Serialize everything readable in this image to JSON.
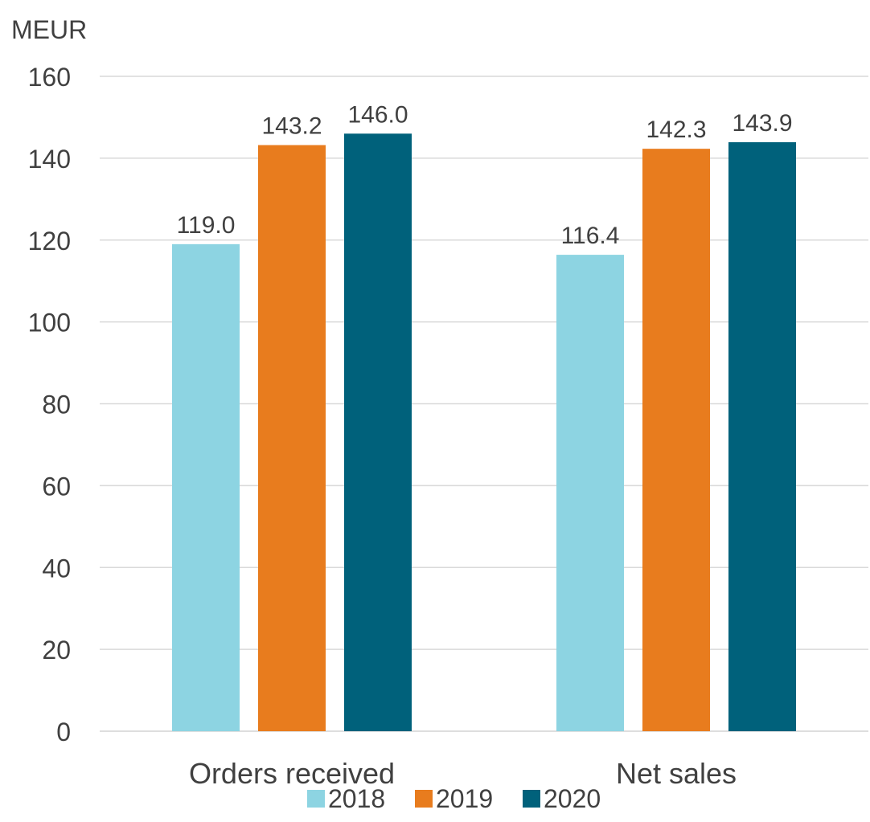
{
  "chart_data": {
    "type": "bar",
    "ylabel": "MEUR",
    "categories": [
      "Orders received",
      "Net sales"
    ],
    "series": [
      {
        "name": "2018",
        "color": "#8dd4e2",
        "values": [
          119.0,
          116.4
        ],
        "labels": [
          "119.0",
          "116.4"
        ]
      },
      {
        "name": "2019",
        "color": "#e87c1e",
        "values": [
          143.2,
          142.3
        ],
        "labels": [
          "143.2",
          "142.3"
        ]
      },
      {
        "name": "2020",
        "color": "#00617b",
        "values": [
          146.0,
          143.9
        ],
        "labels": [
          "146.0",
          "143.9"
        ]
      }
    ],
    "ylim": [
      0,
      160
    ],
    "yticks": [
      "0",
      "20",
      "40",
      "60",
      "80",
      "100",
      "120",
      "140",
      "160"
    ],
    "grid": true,
    "legend": "bottom"
  }
}
